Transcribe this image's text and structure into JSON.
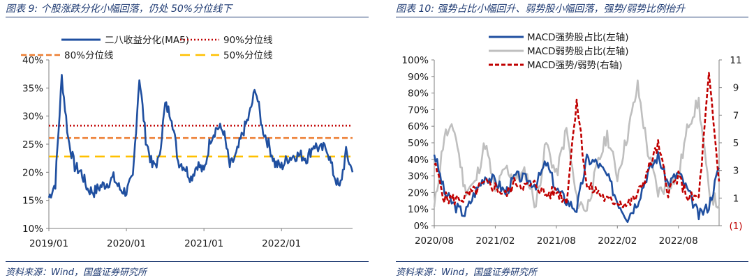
{
  "left": {
    "title": "图表 9:  个股涨跌分化小幅回落，仍处 50%分位线下",
    "source": "资料来源：Wind，国盛证券研究所"
  },
  "right": {
    "title": "图表 10:  强势占比小幅回升、弱势股小幅回落，强势/弱势比例抬升",
    "source": "资料来源：Wind，国盛证券研究所"
  },
  "chart_data": [
    {
      "type": "line",
      "title": "",
      "x_ticks": [
        "2019/01",
        "2020/01",
        "2021/01",
        "2022/01"
      ],
      "x_range": [
        "2019/01",
        "2022/12"
      ],
      "y_ticks": [
        "40%",
        "35%",
        "30%",
        "25%",
        "20%",
        "15%",
        "10%"
      ],
      "ylim": [
        10,
        40
      ],
      "grid": false,
      "legend": "top",
      "series": [
        {
          "name": "二八收益分化(MA5)",
          "color": "#1f4fa0",
          "x": [
            "2019/01",
            "2019/02",
            "2019/03",
            "2019/04",
            "2019/05",
            "2019/06",
            "2019/07",
            "2019/08",
            "2019/09",
            "2019/10",
            "2019/11",
            "2019/12",
            "2020/01",
            "2020/02",
            "2020/03",
            "2020/04",
            "2020/05",
            "2020/06",
            "2020/07",
            "2020/08",
            "2020/09",
            "2020/10",
            "2020/11",
            "2020/12",
            "2021/01",
            "2021/02",
            "2021/03",
            "2021/04",
            "2021/05",
            "2021/06",
            "2021/07",
            "2021/08",
            "2021/09",
            "2021/10",
            "2021/11",
            "2021/12",
            "2022/01",
            "2022/02",
            "2022/03",
            "2022/04",
            "2022/05",
            "2022/06",
            "2022/07",
            "2022/08",
            "2022/09",
            "2022/10",
            "2022/11",
            "2022/12"
          ],
          "values": [
            15.5,
            18,
            37,
            26,
            21,
            20,
            17,
            16.5,
            17.5,
            18,
            19,
            17,
            16.5,
            19,
            37,
            26,
            21,
            22,
            32,
            30,
            22,
            21,
            19,
            21.5,
            20,
            26,
            28,
            27.5,
            21,
            23,
            27,
            30,
            35,
            28,
            25,
            21.5,
            21,
            22.5,
            23,
            23,
            22.5,
            25,
            24,
            24.5,
            20,
            17,
            23.5,
            20
          ]
        },
        {
          "name": "90%分位线",
          "color": "#c00000",
          "values": [
            28.3
          ]
        },
        {
          "name": "80%分位线",
          "color": "#ed7d31",
          "values": [
            26.1
          ]
        },
        {
          "name": "50%分位线",
          "color": "#ffc000",
          "values": [
            22.8
          ]
        }
      ]
    },
    {
      "type": "line",
      "title": "",
      "x_ticks": [
        "2020/08",
        "2021/02",
        "2021/08",
        "2022/02",
        "2022/08"
      ],
      "x_range": [
        "2020/08",
        "2022/12"
      ],
      "y_ticks_left": [
        "100%",
        "90%",
        "80%",
        "70%",
        "60%",
        "50%",
        "40%",
        "30%",
        "20%",
        "10%",
        "0%"
      ],
      "ylim_left": [
        0,
        100
      ],
      "y_ticks_right": [
        "11",
        "9",
        "7",
        "5",
        "3",
        "1",
        "(1)"
      ],
      "ylim_right": [
        -1,
        11
      ],
      "grid": false,
      "legend": "top",
      "series": [
        {
          "name": "MACD强势股占比(左轴)",
          "axis": "left",
          "color": "#1f4fa0",
          "x": [
            "2020/08",
            "2020/09",
            "2020/10",
            "2020/11",
            "2020/12",
            "2021/01",
            "2021/02",
            "2021/03",
            "2021/04",
            "2021/05",
            "2021/06",
            "2021/07",
            "2021/08",
            "2021/09",
            "2021/10",
            "2021/11",
            "2021/12",
            "2022/01",
            "2022/02",
            "2022/03",
            "2022/04",
            "2022/05",
            "2022/06",
            "2022/07",
            "2022/08",
            "2022/09",
            "2022/10",
            "2022/11",
            "2022/12"
          ],
          "values": [
            44,
            20,
            12,
            7,
            20,
            30,
            27,
            20,
            30,
            28,
            25,
            38,
            22,
            15,
            10,
            40,
            38,
            30,
            15,
            5,
            15,
            32,
            42,
            25,
            32,
            20,
            6,
            12,
            35
          ]
        },
        {
          "name": "MACD弱势股占比(左轴)",
          "axis": "left",
          "color": "#bfbfbf",
          "x": [
            "2020/08",
            "2020/09",
            "2020/10",
            "2020/11",
            "2020/12",
            "2021/01",
            "2021/02",
            "2021/03",
            "2021/04",
            "2021/05",
            "2021/06",
            "2021/07",
            "2021/08",
            "2021/09",
            "2021/10",
            "2021/11",
            "2021/12",
            "2022/01",
            "2022/02",
            "2022/03",
            "2022/04",
            "2022/05",
            "2022/06",
            "2022/07",
            "2022/08",
            "2022/09",
            "2022/10",
            "2022/11",
            "2022/12"
          ],
          "values": [
            10,
            55,
            58,
            22,
            25,
            50,
            20,
            35,
            28,
            32,
            12,
            50,
            30,
            58,
            15,
            10,
            35,
            55,
            30,
            55,
            84,
            45,
            20,
            25,
            30,
            62,
            75,
            20,
            12
          ]
        },
        {
          "name": "MACD强势/弱势(右轴)",
          "axis": "right",
          "color": "#c00000",
          "x": [
            "2020/08",
            "2020/09",
            "2020/10",
            "2020/11",
            "2020/12",
            "2021/01",
            "2021/02",
            "2021/03",
            "2021/04",
            "2021/05",
            "2021/06",
            "2021/07",
            "2021/08",
            "2021/09",
            "2021/10",
            "2021/11",
            "2021/12",
            "2022/01",
            "2022/02",
            "2022/03",
            "2022/04",
            "2022/05",
            "2022/06",
            "2022/07",
            "2022/08",
            "2022/09",
            "2022/10",
            "2022/11",
            "2022/12"
          ],
          "values": [
            3.5,
            1.0,
            0.9,
            1.0,
            1.5,
            2.0,
            1.8,
            1.2,
            2.2,
            1.8,
            2.0,
            1.2,
            1.5,
            0.8,
            8.2,
            1.8,
            1.5,
            0.8,
            0.8,
            0.5,
            1.2,
            3.0,
            4.8,
            1.5,
            2.5,
            1.0,
            1.0,
            9.8,
            2.2
          ]
        }
      ]
    }
  ]
}
